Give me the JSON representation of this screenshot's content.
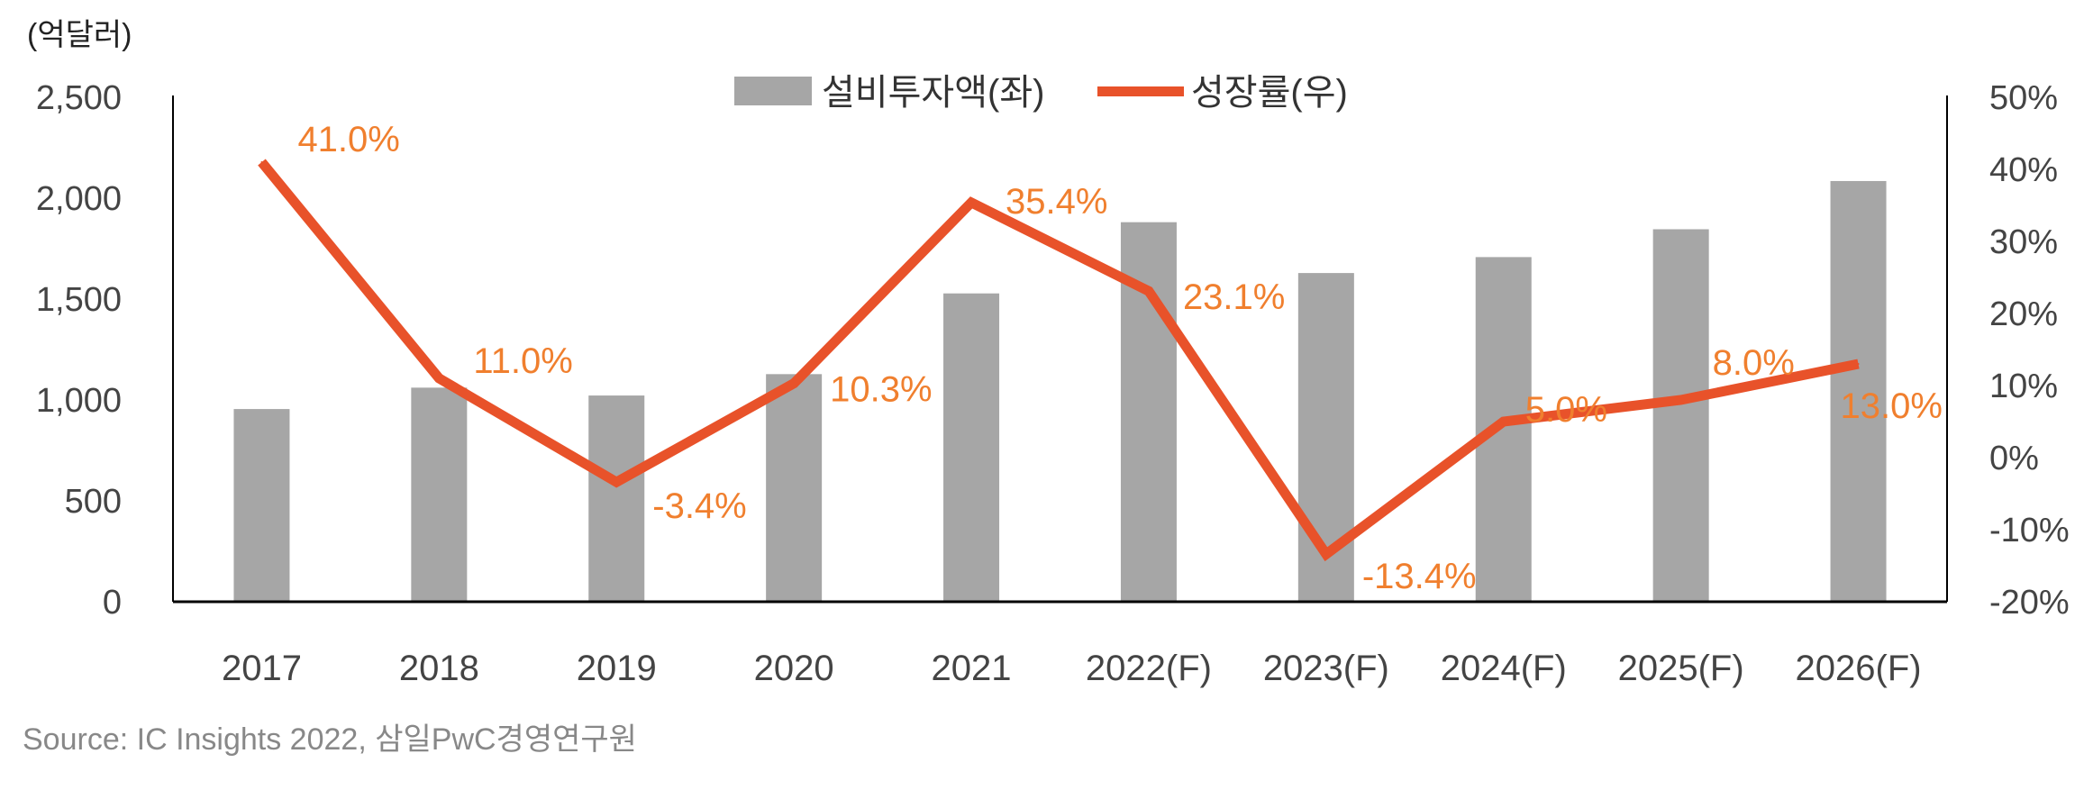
{
  "chart_data": {
    "type": "bar+line",
    "unit_label": "(억달러)",
    "categories": [
      "2017",
      "2018",
      "2019",
      "2020",
      "2021",
      "2022(F)",
      "2023(F)",
      "2024(F)",
      "2025(F)",
      "2026(F)"
    ],
    "series": [
      {
        "name": "설비투자액(좌)",
        "type": "bar",
        "axis": "left",
        "color": "#a6a6a6",
        "values": [
          955,
          1061,
          1022,
          1128,
          1528,
          1881,
          1629,
          1708,
          1846,
          2085
        ]
      },
      {
        "name": "성장률(우)",
        "type": "line",
        "axis": "right",
        "color": "#e8522a",
        "values": [
          41.0,
          11.0,
          -3.4,
          10.3,
          35.4,
          23.1,
          -13.4,
          5.0,
          8.0,
          13.0
        ],
        "labels": [
          "41.0%",
          "11.0%",
          "-3.4%",
          "10.3%",
          "35.4%",
          "23.1%",
          "-13.4%",
          "5.0%",
          "8.0%",
          "13.0%"
        ]
      }
    ],
    "left_axis": {
      "ylim": [
        0,
        2500
      ],
      "ticks": [
        "0",
        "500",
        "1,000",
        "1,500",
        "2,000",
        "2,500"
      ]
    },
    "right_axis": {
      "ylim": [
        -20,
        50
      ],
      "ticks": [
        "-20%",
        "-10%",
        "0%",
        "10%",
        "20%",
        "30%",
        "40%",
        "50%"
      ]
    },
    "legend": {
      "position": "top-center"
    },
    "grid": false,
    "source": "Source: IC Insights 2022, 삼일PwC경영연구원",
    "label_color": "#f07f2e"
  }
}
